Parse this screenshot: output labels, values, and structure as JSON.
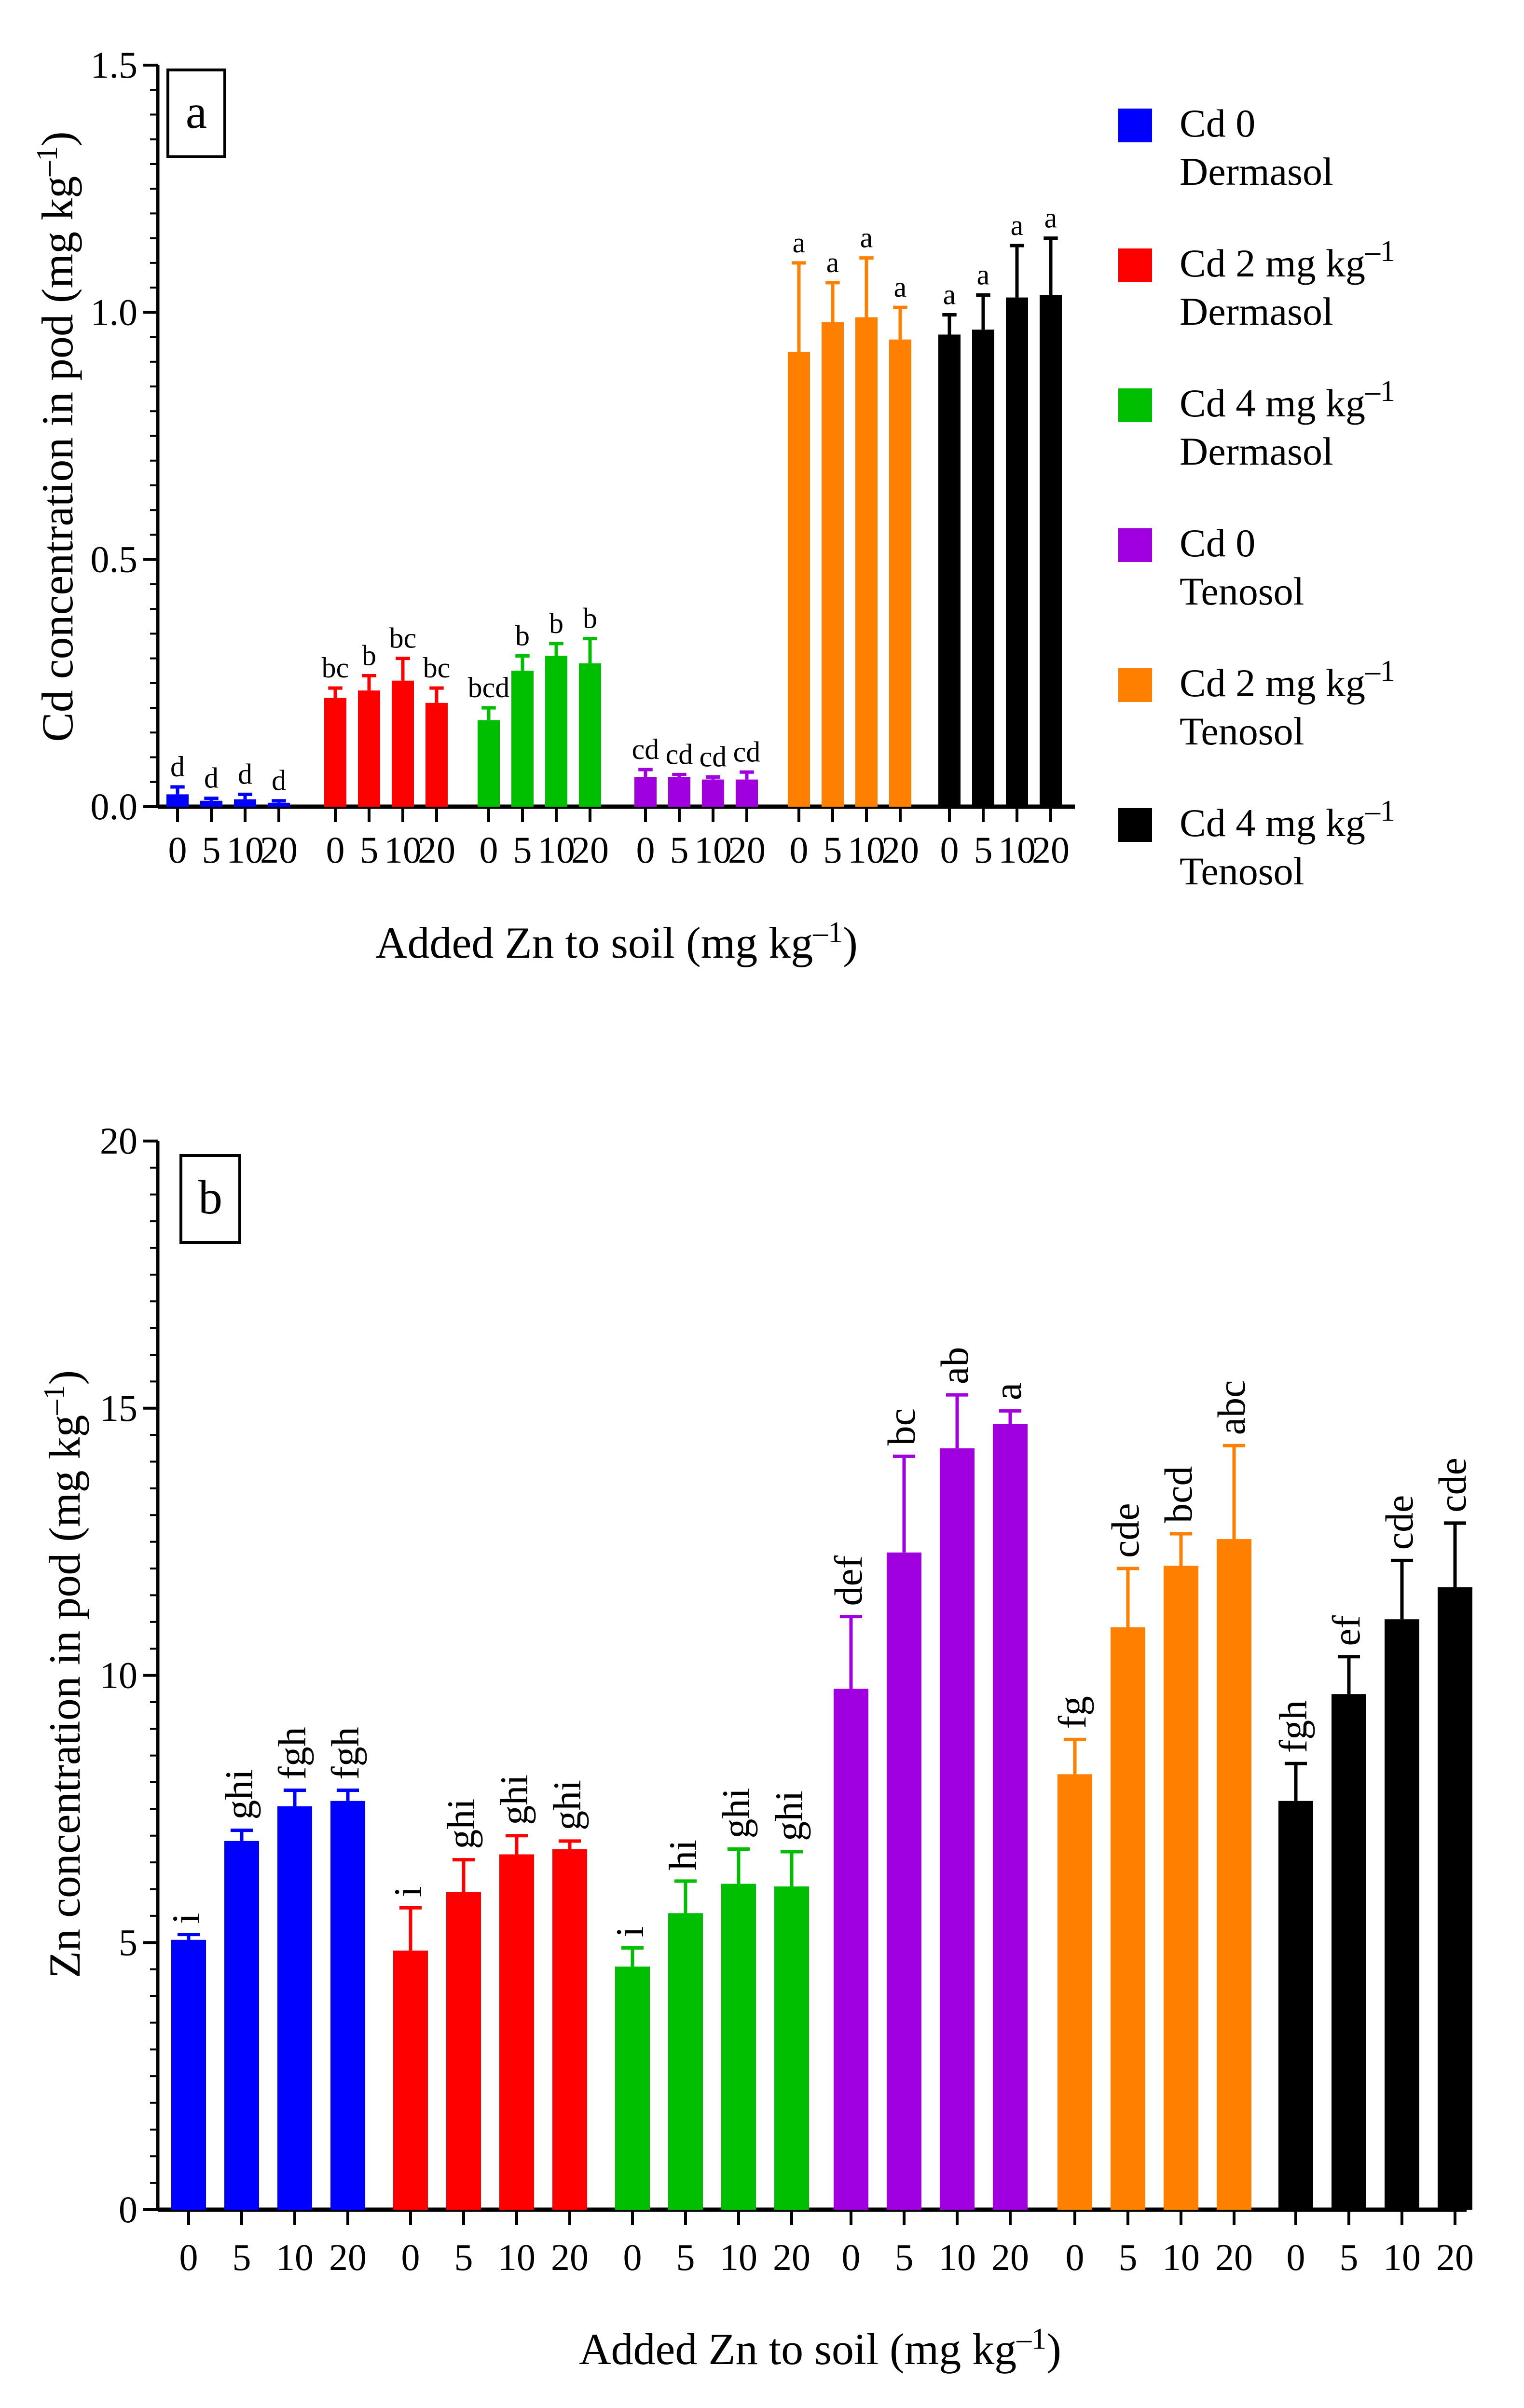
{
  "legend": [
    {
      "line1": "Cd 0",
      "line2": "Dermasol",
      "color": "#0000ff"
    },
    {
      "line1": "Cd 2 mg kg",
      "sup": "–1",
      "line2": "Dermasol",
      "color": "#ff0000"
    },
    {
      "line1": "Cd 4 mg kg",
      "sup": "–1",
      "line2": "Dermasol",
      "color": "#00bf00"
    },
    {
      "line1": "Cd 0",
      "line2": "Tenosol",
      "color": "#a000e0"
    },
    {
      "line1": "Cd 2 mg kg",
      "sup": "–1",
      "line2": "Tenosol",
      "color": "#ff8000"
    },
    {
      "line1": "Cd 4 mg kg",
      "sup": "–1",
      "line2": "Tenosol",
      "color": "#000000"
    }
  ],
  "chart_data": [
    {
      "type": "bar",
      "panel": "a",
      "ylabel": "Cd concentration in pod (mg kg",
      "ylabel_sup": "–1",
      "ylabel_end": ")",
      "xlabel": "Added Zn to soil (mg kg",
      "xlabel_sup": "–1",
      "xlabel_end": ")",
      "ylim": [
        0,
        1.5
      ],
      "yticks": [
        0,
        0.5,
        1.0,
        1.5
      ],
      "ytick_labels": [
        "0.0",
        "0.5",
        "1.0",
        "1.5"
      ],
      "categories": [
        "0",
        "5",
        "10",
        "20"
      ],
      "series": [
        {
          "name": "Cd 0 Dermasol",
          "values": [
            0.025,
            0.012,
            0.015,
            0.008
          ],
          "errors": [
            0.015,
            0.005,
            0.01,
            0.004
          ],
          "letters": [
            "d",
            "d",
            "d",
            "d"
          ]
        },
        {
          "name": "Cd 2 mg kg–1 Dermasol",
          "values": [
            0.22,
            0.235,
            0.255,
            0.21
          ],
          "errors": [
            0.02,
            0.03,
            0.045,
            0.03
          ],
          "letters": [
            "bc",
            "b",
            "bc",
            "bc"
          ]
        },
        {
          "name": "Cd 4 mg kg–1 Dermasol",
          "values": [
            0.175,
            0.275,
            0.305,
            0.29
          ],
          "errors": [
            0.025,
            0.03,
            0.025,
            0.05
          ],
          "letters": [
            "bcd",
            "b",
            "b",
            "b"
          ]
        },
        {
          "name": "Cd 0 Tenosol",
          "values": [
            0.06,
            0.06,
            0.055,
            0.055
          ],
          "errors": [
            0.015,
            0.005,
            0.005,
            0.015
          ],
          "letters": [
            "cd",
            "cd",
            "cd",
            "cd"
          ]
        },
        {
          "name": "Cd 2 mg kg–1 Tenosol",
          "values": [
            0.92,
            0.98,
            0.99,
            0.945
          ],
          "errors": [
            0.18,
            0.08,
            0.12,
            0.065
          ],
          "letters": [
            "a",
            "a",
            "a",
            "a"
          ]
        },
        {
          "name": "Cd 4 mg kg–1 Tenosol",
          "values": [
            0.955,
            0.965,
            1.03,
            1.035
          ],
          "errors": [
            0.04,
            0.07,
            0.105,
            0.115
          ],
          "letters": [
            "a",
            "a",
            "a",
            "a"
          ]
        }
      ]
    },
    {
      "type": "bar",
      "panel": "b",
      "ylabel": "Zn concentration in pod (mg kg",
      "ylabel_sup": "–1",
      "ylabel_end": ")",
      "xlabel": "Added Zn to soil (mg kg",
      "xlabel_sup": "–1",
      "xlabel_end": ")",
      "ylim": [
        0,
        20
      ],
      "yticks": [
        0,
        5,
        10,
        15,
        20
      ],
      "ytick_labels": [
        "0",
        "5",
        "10",
        "15",
        "20"
      ],
      "categories": [
        "0",
        "5",
        "10",
        "20"
      ],
      "series": [
        {
          "name": "Cd 0 Dermasol",
          "values": [
            5.05,
            6.9,
            7.55,
            7.65
          ],
          "errors": [
            0.1,
            0.2,
            0.3,
            0.2
          ],
          "letters": [
            "i",
            "ghi",
            "fgh",
            "fgh"
          ]
        },
        {
          "name": "Cd 2 mg kg–1 Dermasol",
          "values": [
            4.85,
            5.95,
            6.65,
            6.75
          ],
          "errors": [
            0.8,
            0.6,
            0.35,
            0.15
          ],
          "letters": [
            "i",
            "ghi",
            "ghi",
            "ghi"
          ]
        },
        {
          "name": "Cd 4 mg kg–1 Dermasol",
          "values": [
            4.55,
            5.55,
            6.1,
            6.05
          ],
          "errors": [
            0.35,
            0.6,
            0.65,
            0.65
          ],
          "letters": [
            "i",
            "hi",
            "ghi",
            "ghi"
          ]
        },
        {
          "name": "Cd 0 Tenosol",
          "values": [
            9.75,
            12.3,
            14.25,
            14.7
          ],
          "errors": [
            1.35,
            1.8,
            1.0,
            0.25
          ],
          "letters": [
            "def",
            "bc",
            "ab",
            "a"
          ]
        },
        {
          "name": "Cd 2 mg kg–1 Tenosol",
          "values": [
            8.15,
            10.9,
            12.05,
            12.55
          ],
          "errors": [
            0.65,
            1.1,
            0.6,
            1.75
          ],
          "letters": [
            "fg",
            "cde",
            "bcd",
            "abc"
          ]
        },
        {
          "name": "Cd 4 mg kg–1 Tenosol",
          "values": [
            7.65,
            9.65,
            11.05,
            11.65
          ],
          "errors": [
            0.7,
            0.7,
            1.1,
            1.2
          ],
          "letters": [
            "fgh",
            "ef",
            "cde",
            "cde"
          ]
        }
      ]
    }
  ]
}
